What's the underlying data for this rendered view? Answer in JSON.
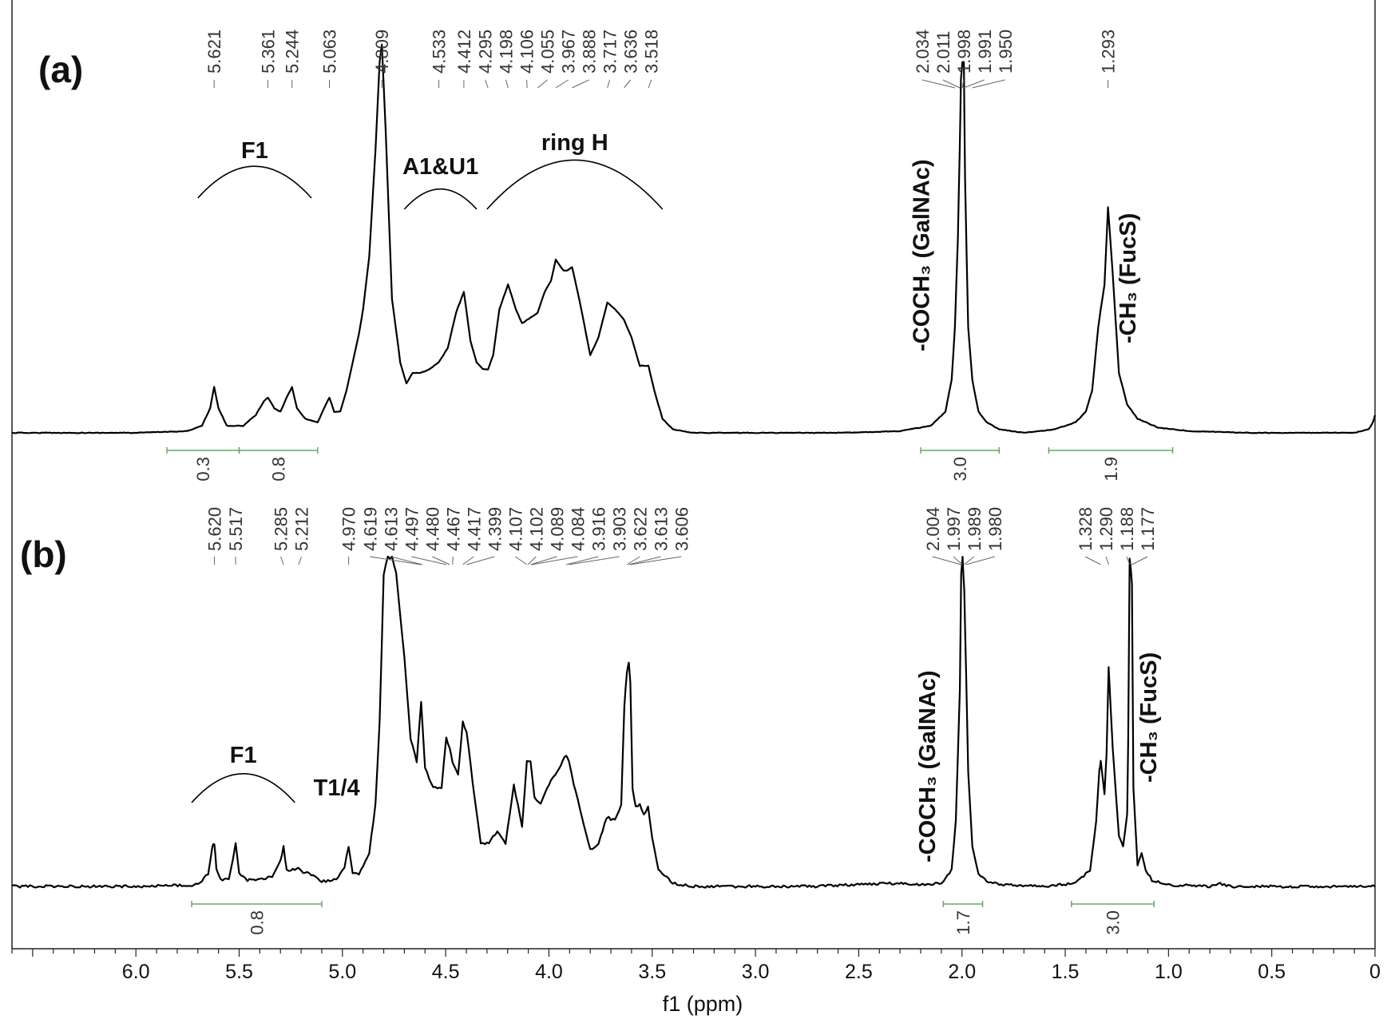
{
  "chart_data": {
    "type": "line",
    "xlabel": "f1 (ppm)",
    "xlim": [
      6.6,
      0.0
    ],
    "x_ticks": [
      "6.0",
      "5.5",
      "5.0",
      "4.5",
      "4.0",
      "3.5",
      "3.0",
      "2.5",
      "2.0",
      "1.5",
      "1.0",
      "0.5",
      "0"
    ],
    "x_tick_values": [
      6.0,
      5.5,
      5.0,
      4.5,
      4.0,
      3.5,
      3.0,
      2.5,
      2.0,
      1.5,
      1.0,
      0.5,
      0.0
    ],
    "grid": false,
    "panels": [
      {
        "label": "(a)",
        "peak_labels": [
          "5.621",
          "5.361",
          "5.244",
          "5.063",
          "4.809",
          "4.533",
          "4.412",
          "4.295",
          "4.198",
          "4.106",
          "4.055",
          "3.967",
          "3.888",
          "3.717",
          "3.636",
          "3.518",
          "2.034",
          "2.011",
          "1.998",
          "1.991",
          "1.950",
          "1.293"
        ],
        "peak_positions": [
          5.621,
          5.361,
          5.244,
          5.063,
          4.809,
          4.533,
          4.412,
          4.295,
          4.198,
          4.106,
          4.055,
          3.967,
          3.888,
          3.717,
          3.636,
          3.518,
          2.034,
          2.011,
          1.998,
          1.991,
          1.95,
          1.293
        ],
        "annotations": [
          {
            "text": "F1",
            "x_start": 5.7,
            "x_end": 5.15
          },
          {
            "text": "A1&U1",
            "x_start": 4.7,
            "x_end": 4.35
          },
          {
            "text": "ring H",
            "x_start": 4.3,
            "x_end": 3.45
          }
        ],
        "vertical_annotations": [
          {
            "text": "-COCH₃ (GalNAc)",
            "x": 2.16
          },
          {
            "text": "-CH₃ (FucS)",
            "x": 1.16
          }
        ],
        "integrals": [
          {
            "value": "0.3",
            "x_start": 5.85,
            "x_end": 5.5
          },
          {
            "value": "0.8",
            "x_start": 5.5,
            "x_end": 5.12
          },
          {
            "value": "3.0",
            "x_start": 2.2,
            "x_end": 1.82
          },
          {
            "value": "1.9",
            "x_start": 1.58,
            "x_end": 0.98
          }
        ],
        "series": [
          {
            "x": [
              6.6,
              6.0,
              5.75,
              5.68,
              5.64,
              5.621,
              5.6,
              5.56,
              5.48,
              5.42,
              5.38,
              5.361,
              5.33,
              5.3,
              5.27,
              5.244,
              5.22,
              5.18,
              5.12,
              5.08,
              5.063,
              5.04,
              5.01,
              4.98,
              4.95,
              4.92,
              4.9,
              4.87,
              4.84,
              4.82,
              4.809,
              4.79,
              4.76,
              4.72,
              4.69,
              4.66,
              4.62,
              4.58,
              4.533,
              4.49,
              4.45,
              4.412,
              4.38,
              4.35,
              4.32,
              4.295,
              4.27,
              4.24,
              4.198,
              4.16,
              4.13,
              4.106,
              4.08,
              4.055,
              4.02,
              3.99,
              3.967,
              3.93,
              3.91,
              3.888,
              3.85,
              3.8,
              3.76,
              3.717,
              3.68,
              3.636,
              3.6,
              3.56,
              3.518,
              3.49,
              3.45,
              3.4,
              3.3,
              3.2,
              3.0,
              2.6,
              2.3,
              2.15,
              2.08,
              2.05,
              2.034,
              2.02,
              2.011,
              2.005,
              1.998,
              1.991,
              1.985,
              1.97,
              1.95,
              1.92,
              1.88,
              1.82,
              1.7,
              1.55,
              1.45,
              1.4,
              1.37,
              1.34,
              1.328,
              1.31,
              1.293,
              1.27,
              1.24,
              1.2,
              1.15,
              1.05,
              0.9,
              0.6,
              0.3,
              0.1,
              0.03,
              0.01,
              0.0
            ],
            "y": [
              0.0,
              0.0,
              0.005,
              0.02,
              0.07,
              0.13,
              0.07,
              0.02,
              0.02,
              0.05,
              0.09,
              0.1,
              0.07,
              0.06,
              0.1,
              0.13,
              0.07,
              0.04,
              0.03,
              0.08,
              0.1,
              0.06,
              0.06,
              0.12,
              0.2,
              0.28,
              0.35,
              0.5,
              0.8,
              1.05,
              1.1,
              0.85,
              0.38,
              0.2,
              0.14,
              0.17,
              0.17,
              0.18,
              0.2,
              0.24,
              0.34,
              0.4,
              0.26,
              0.2,
              0.18,
              0.18,
              0.22,
              0.35,
              0.42,
              0.35,
              0.31,
              0.32,
              0.33,
              0.34,
              0.4,
              0.43,
              0.49,
              0.46,
              0.46,
              0.47,
              0.37,
              0.22,
              0.27,
              0.37,
              0.35,
              0.32,
              0.27,
              0.19,
              0.19,
              0.12,
              0.04,
              0.01,
              0.0,
              0.0,
              0.0,
              0.0,
              0.005,
              0.02,
              0.06,
              0.15,
              0.3,
              0.55,
              0.8,
              1.0,
              1.05,
              1.05,
              0.72,
              0.3,
              0.15,
              0.06,
              0.03,
              0.01,
              0.0,
              0.01,
              0.03,
              0.06,
              0.12,
              0.3,
              0.35,
              0.42,
              0.64,
              0.45,
              0.17,
              0.08,
              0.04,
              0.015,
              0.005,
              0.0,
              0.0,
              0.0,
              0.01,
              0.03,
              0.05
            ]
          }
        ]
      },
      {
        "label": "(b)",
        "peak_labels": [
          "5.620",
          "5.517",
          "5.285",
          "5.212",
          "4.970",
          "4.619",
          "4.613",
          "4.497",
          "4.480",
          "4.467",
          "4.417",
          "4.399",
          "4.107",
          "4.102",
          "4.089",
          "4.084",
          "3.916",
          "3.903",
          "3.622",
          "3.613",
          "3.606",
          "2.004",
          "1.997",
          "1.989",
          "1.980",
          "1.328",
          "1.290",
          "1.188",
          "1.177"
        ],
        "peak_positions": [
          5.62,
          5.517,
          5.285,
          5.212,
          4.97,
          4.619,
          4.613,
          4.497,
          4.48,
          4.467,
          4.417,
          4.399,
          4.107,
          4.102,
          4.089,
          4.084,
          3.916,
          3.903,
          3.622,
          3.613,
          3.606,
          2.004,
          1.997,
          1.989,
          1.98,
          1.328,
          1.29,
          1.188,
          1.177
        ],
        "annotations": [
          {
            "text": "F1",
            "x_start": 5.73,
            "x_end": 5.23
          },
          {
            "text": "T1/4",
            "x_start": null,
            "x_end": null
          }
        ],
        "vertical_annotations": [
          {
            "text": "-COCH₃ (GalNAc)",
            "x": 2.13
          },
          {
            "text": "-CH₃ (FucS)",
            "x": 1.06
          }
        ],
        "integrals": [
          {
            "value": "0.8",
            "x_start": 5.73,
            "x_end": 5.1
          },
          {
            "value": "1.7",
            "x_start": 2.09,
            "x_end": 1.9
          },
          {
            "value": "3.0",
            "x_start": 1.47,
            "x_end": 1.07
          }
        ],
        "series": [
          {
            "x": [
              6.6,
              6.0,
              5.7,
              5.65,
              5.63,
              5.62,
              5.61,
              5.59,
              5.55,
              5.53,
              5.517,
              5.5,
              5.46,
              5.4,
              5.34,
              5.3,
              5.285,
              5.27,
              5.24,
              5.212,
              5.19,
              5.16,
              5.1,
              5.03,
              4.99,
              4.97,
              4.95,
              4.92,
              4.87,
              4.84,
              4.82,
              4.8,
              4.78,
              4.76,
              4.74,
              4.7,
              4.67,
              4.64,
              4.619,
              4.6,
              4.56,
              4.52,
              4.497,
              4.48,
              4.467,
              4.44,
              4.417,
              4.399,
              4.37,
              4.33,
              4.29,
              4.25,
              4.21,
              4.17,
              4.13,
              4.107,
              4.089,
              4.07,
              4.04,
              4.0,
              3.95,
              3.916,
              3.903,
              3.88,
              3.84,
              3.8,
              3.76,
              3.72,
              3.68,
              3.65,
              3.635,
              3.622,
              3.613,
              3.606,
              3.595,
              3.58,
              3.56,
              3.54,
              3.52,
              3.5,
              3.47,
              3.4,
              3.3,
              3.0,
              2.7,
              2.35,
              2.2,
              2.1,
              2.05,
              2.03,
              2.01,
              2.004,
              1.997,
              1.989,
              1.98,
              1.97,
              1.95,
              1.92,
              1.88,
              1.8,
              1.6,
              1.45,
              1.38,
              1.35,
              1.335,
              1.328,
              1.31,
              1.3,
              1.29,
              1.27,
              1.24,
              1.22,
              1.2,
              1.195,
              1.188,
              1.177,
              1.17,
              1.15,
              1.13,
              1.11,
              1.08,
              1.0,
              0.8,
              0.75,
              0.7,
              0.4,
              0.1,
              0.0
            ],
            "y": [
              0.0,
              0.0,
              0.005,
              0.04,
              0.12,
              0.13,
              0.05,
              0.02,
              0.02,
              0.08,
              0.13,
              0.04,
              0.02,
              0.02,
              0.03,
              0.08,
              0.12,
              0.05,
              0.05,
              0.06,
              0.04,
              0.04,
              0.015,
              0.02,
              0.06,
              0.12,
              0.04,
              0.04,
              0.1,
              0.25,
              0.5,
              0.95,
              1.0,
              1.0,
              0.95,
              0.7,
              0.45,
              0.38,
              0.56,
              0.36,
              0.3,
              0.3,
              0.45,
              0.42,
              0.38,
              0.34,
              0.5,
              0.47,
              0.32,
              0.13,
              0.13,
              0.17,
              0.13,
              0.31,
              0.18,
              0.38,
              0.38,
              0.27,
              0.25,
              0.31,
              0.36,
              0.4,
              0.38,
              0.31,
              0.21,
              0.11,
              0.13,
              0.21,
              0.2,
              0.25,
              0.55,
              0.65,
              0.68,
              0.62,
              0.3,
              0.24,
              0.25,
              0.22,
              0.24,
              0.15,
              0.05,
              0.01,
              0.0,
              0.0,
              0.0,
              0.01,
              0.005,
              0.01,
              0.05,
              0.2,
              0.6,
              0.95,
              1.0,
              0.9,
              0.65,
              0.35,
              0.12,
              0.04,
              0.015,
              0.005,
              0.0,
              0.01,
              0.05,
              0.2,
              0.35,
              0.38,
              0.28,
              0.4,
              0.67,
              0.42,
              0.15,
              0.12,
              0.22,
              0.45,
              1.0,
              0.92,
              0.3,
              0.06,
              0.1,
              0.05,
              0.02,
              0.005,
              0.0,
              0.01,
              0.0,
              0.0,
              0.0,
              0.0
            ]
          }
        ]
      }
    ]
  }
}
